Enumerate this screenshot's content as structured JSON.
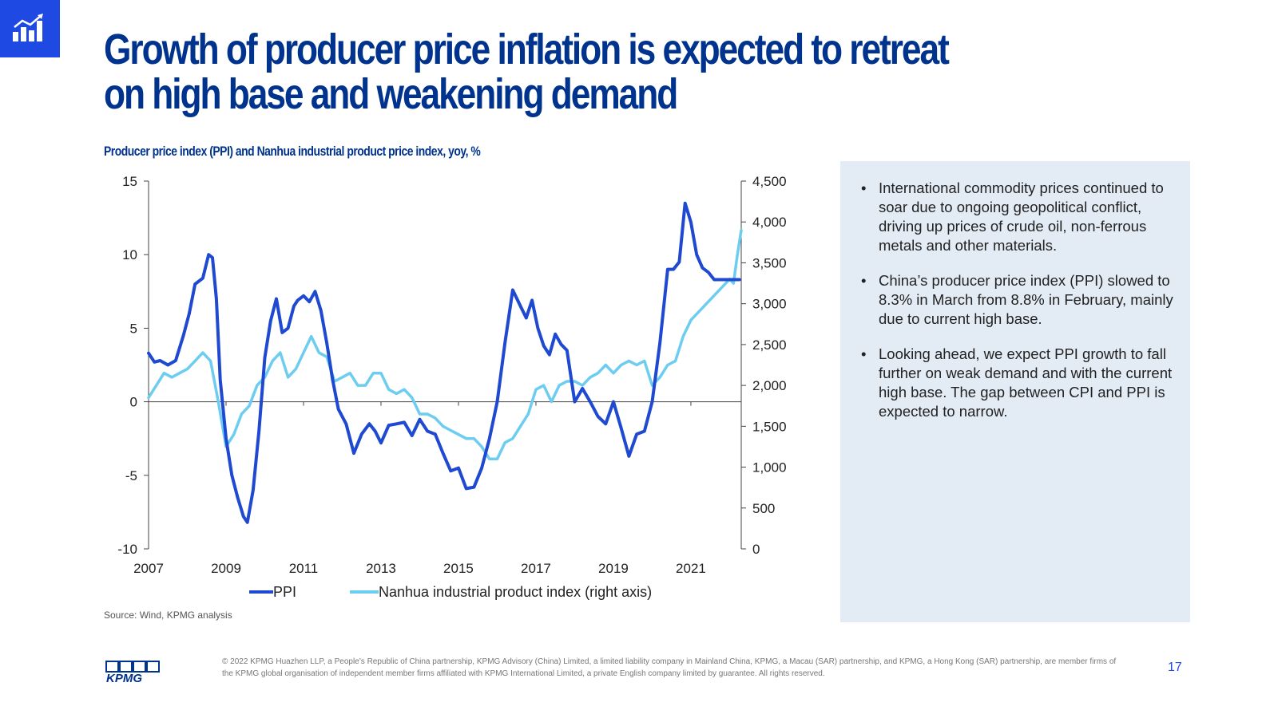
{
  "title": "Growth of producer price inflation is expected to retreat on high base and weakening demand",
  "chart_subtitle": "Producer price index (PPI) and Nanhua industrial product price index, yoy, %",
  "source": "Source: Wind, KPMG analysis",
  "panel": {
    "bullets": [
      "International commodity prices continued to soar due to ongoing geopolitical conflict, driving up prices of crude oil, non-ferrous metals and other materials.",
      "China’s producer price index (PPI) slowed to 8.3% in March from 8.8% in February, mainly due to current high base.",
      "Looking ahead, we expect PPI growth to fall further on weak demand and with the current high base. The gap between CPI and PPI is expected to narrow."
    ]
  },
  "footer": {
    "legal": "© 2022 KPMG Huazhen LLP, a People’s Republic of China partnership, KPMG Advisory (China) Limited, a limited liability company in Mainland China, KPMG, a Macau (SAR) partnership, and KPMG, a Hong Kong (SAR) partnership, are member firms of the KPMG global organisation of independent member firms affiliated with KPMG International Limited, a private English company limited by guarantee. All rights reserved.",
    "page_number": "17",
    "logo_text": "KPMG"
  },
  "colors": {
    "brand_blue": "#00338d",
    "ppi": "#1e49d0",
    "nanhua": "#6ccdf0",
    "panel_bg": "#e3ecf5"
  },
  "chart_data": {
    "type": "line",
    "x_range": [
      2007,
      2022.3
    ],
    "x_ticks": [
      "2007",
      "2009",
      "2011",
      "2013",
      "2015",
      "2017",
      "2019",
      "2021"
    ],
    "y_left": {
      "range": [
        -10,
        15
      ],
      "ticks": [
        "15",
        "10",
        "5",
        "0",
        "-5",
        "-10"
      ]
    },
    "y_right": {
      "range": [
        0,
        4500
      ],
      "ticks": [
        "4,500",
        "4,000",
        "3,500",
        "3,000",
        "2,500",
        "2,000",
        "1,500",
        "1,000",
        "500",
        "0"
      ]
    },
    "legend_position": "bottom",
    "series": [
      {
        "name": "PPI",
        "axis": "left",
        "x": [
          2007.0,
          2007.15,
          2007.3,
          2007.5,
          2007.7,
          2007.9,
          2008.05,
          2008.2,
          2008.4,
          2008.55,
          2008.65,
          2008.75,
          2008.85,
          2009.0,
          2009.15,
          2009.3,
          2009.45,
          2009.55,
          2009.7,
          2009.85,
          2010.0,
          2010.15,
          2010.3,
          2010.45,
          2010.6,
          2010.75,
          2010.85,
          2011.0,
          2011.15,
          2011.3,
          2011.45,
          2011.6,
          2011.75,
          2011.9,
          2012.1,
          2012.3,
          2012.5,
          2012.7,
          2012.85,
          2013.0,
          2013.2,
          2013.4,
          2013.6,
          2013.8,
          2014.0,
          2014.2,
          2014.4,
          2014.6,
          2014.8,
          2015.0,
          2015.2,
          2015.4,
          2015.6,
          2015.8,
          2016.0,
          2016.2,
          2016.4,
          2016.6,
          2016.75,
          2016.9,
          2017.05,
          2017.2,
          2017.35,
          2017.5,
          2017.65,
          2017.8,
          2018.0,
          2018.2,
          2018.4,
          2018.6,
          2018.8,
          2019.0,
          2019.2,
          2019.4,
          2019.6,
          2019.8,
          2020.0,
          2020.2,
          2020.4,
          2020.55,
          2020.7,
          2020.85,
          2021.0,
          2021.15,
          2021.3,
          2021.45,
          2021.6,
          2021.75,
          2021.85,
          2021.95,
          2022.05,
          2022.15,
          2022.25
        ],
        "values": [
          3.3,
          2.7,
          2.8,
          2.5,
          2.8,
          4.5,
          6.0,
          8.0,
          8.4,
          10.0,
          9.8,
          7.0,
          1.5,
          -2.5,
          -5.0,
          -6.5,
          -7.8,
          -8.2,
          -6.0,
          -2.0,
          3.0,
          5.5,
          7.0,
          4.7,
          5.0,
          6.5,
          6.9,
          7.2,
          6.8,
          7.5,
          6.2,
          4.0,
          1.5,
          -0.5,
          -1.5,
          -3.5,
          -2.2,
          -1.5,
          -2.0,
          -2.8,
          -1.6,
          -1.5,
          -1.4,
          -2.3,
          -1.2,
          -2.0,
          -2.2,
          -3.5,
          -4.7,
          -4.5,
          -5.9,
          -5.8,
          -4.5,
          -2.5,
          0.0,
          4.0,
          7.6,
          6.5,
          5.7,
          6.9,
          5.0,
          3.8,
          3.2,
          4.6,
          3.9,
          3.5,
          0.0,
          0.9,
          0.0,
          -1.0,
          -1.5,
          0.0,
          -1.8,
          -3.7,
          -2.2,
          -2.0,
          0.0,
          4.0,
          9.0,
          9.0,
          9.5,
          13.5,
          12.2,
          10.0,
          9.1,
          8.8,
          8.3,
          8.3,
          8.3,
          8.3,
          8.3,
          8.3,
          8.3
        ]
      },
      {
        "name": "Nanhua industrial product index (right axis)",
        "axis": "right",
        "x": [
          2007.0,
          2007.2,
          2007.4,
          2007.6,
          2007.8,
          2008.0,
          2008.2,
          2008.4,
          2008.6,
          2008.8,
          2009.0,
          2009.2,
          2009.4,
          2009.6,
          2009.8,
          2010.0,
          2010.2,
          2010.4,
          2010.6,
          2010.8,
          2011.0,
          2011.2,
          2011.4,
          2011.6,
          2011.8,
          2012.0,
          2012.2,
          2012.4,
          2012.6,
          2012.8,
          2013.0,
          2013.2,
          2013.4,
          2013.6,
          2013.8,
          2014.0,
          2014.2,
          2014.4,
          2014.6,
          2014.8,
          2015.0,
          2015.2,
          2015.4,
          2015.6,
          2015.8,
          2016.0,
          2016.2,
          2016.4,
          2016.6,
          2016.8,
          2017.0,
          2017.2,
          2017.4,
          2017.6,
          2017.8,
          2018.0,
          2018.2,
          2018.4,
          2018.6,
          2018.8,
          2019.0,
          2019.2,
          2019.4,
          2019.6,
          2019.8,
          2020.0,
          2020.2,
          2020.4,
          2020.6,
          2020.8,
          2021.0,
          2021.2,
          2021.4,
          2021.6,
          2021.8,
          2022.0,
          2022.1,
          2022.2,
          2022.3
        ],
        "values": [
          1850,
          2000,
          2150,
          2100,
          2150,
          2200,
          2300,
          2400,
          2300,
          1800,
          1250,
          1400,
          1650,
          1750,
          2000,
          2100,
          2300,
          2400,
          2100,
          2200,
          2400,
          2600,
          2400,
          2350,
          2050,
          2100,
          2150,
          2000,
          2000,
          2150,
          2150,
          1950,
          1900,
          1950,
          1850,
          1650,
          1650,
          1600,
          1500,
          1450,
          1400,
          1350,
          1350,
          1250,
          1100,
          1100,
          1300,
          1350,
          1500,
          1650,
          1950,
          2000,
          1800,
          2000,
          2050,
          2050,
          2000,
          2100,
          2150,
          2250,
          2150,
          2250,
          2300,
          2250,
          2300,
          2000,
          2100,
          2250,
          2300,
          2600,
          2800,
          2900,
          3000,
          3100,
          3200,
          3300,
          3250,
          3600,
          3900
        ]
      }
    ]
  }
}
